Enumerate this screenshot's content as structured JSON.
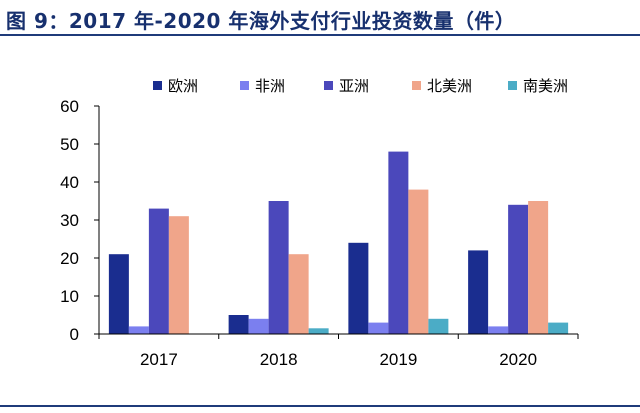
{
  "header": {
    "title": "图 9：2017 年-2020 年海外支付行业投资数量（件）"
  },
  "chart_data": {
    "type": "bar",
    "categories": [
      "2017",
      "2018",
      "2019",
      "2020"
    ],
    "series": [
      {
        "name": "欧洲",
        "color": "#1a2d8f",
        "values": [
          21,
          5,
          24,
          22
        ]
      },
      {
        "name": "非洲",
        "color": "#7b7fef",
        "values": [
          2,
          4,
          3,
          2
        ]
      },
      {
        "name": "亚洲",
        "color": "#4b48bb",
        "values": [
          33,
          35,
          48,
          34
        ]
      },
      {
        "name": "北美洲",
        "color": "#f0a58a",
        "values": [
          31,
          21,
          38,
          35
        ]
      },
      {
        "name": "南美洲",
        "color": "#4bacc6",
        "values": [
          0,
          1.5,
          4,
          3
        ]
      }
    ],
    "ylim": [
      0,
      60
    ],
    "yticks": [
      "0",
      "10",
      "20",
      "30",
      "40",
      "50",
      "60"
    ],
    "grid": false,
    "legend_position": "top"
  }
}
